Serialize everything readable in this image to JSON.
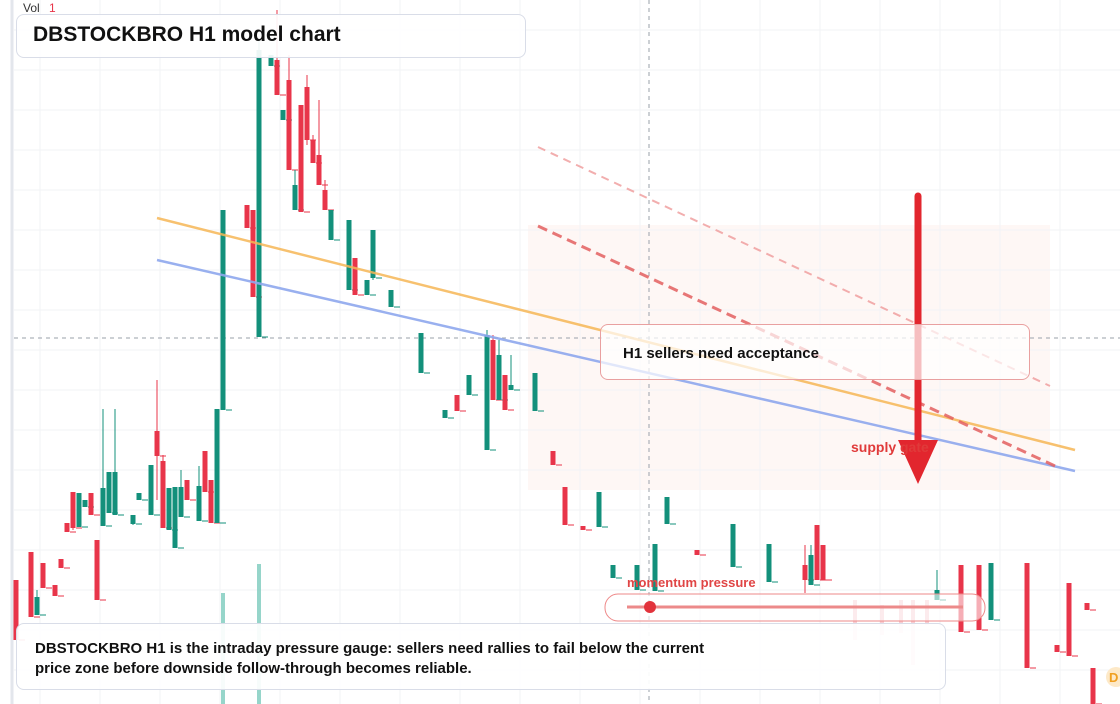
{
  "header": {
    "volume_label": "Vol",
    "volume_value": "1",
    "title": "DBSTOCKBRO H1 model chart"
  },
  "annotations": {
    "acceptance": "H1 sellers need acceptance",
    "supply": "supply gate",
    "momentum": "momentum pressure",
    "badge": "D"
  },
  "description": "DBSTOCKBRO H1 is the intraday pressure gauge: sellers need rallies to fail below the current price zone before downside follow-through becomes reliable."
}
